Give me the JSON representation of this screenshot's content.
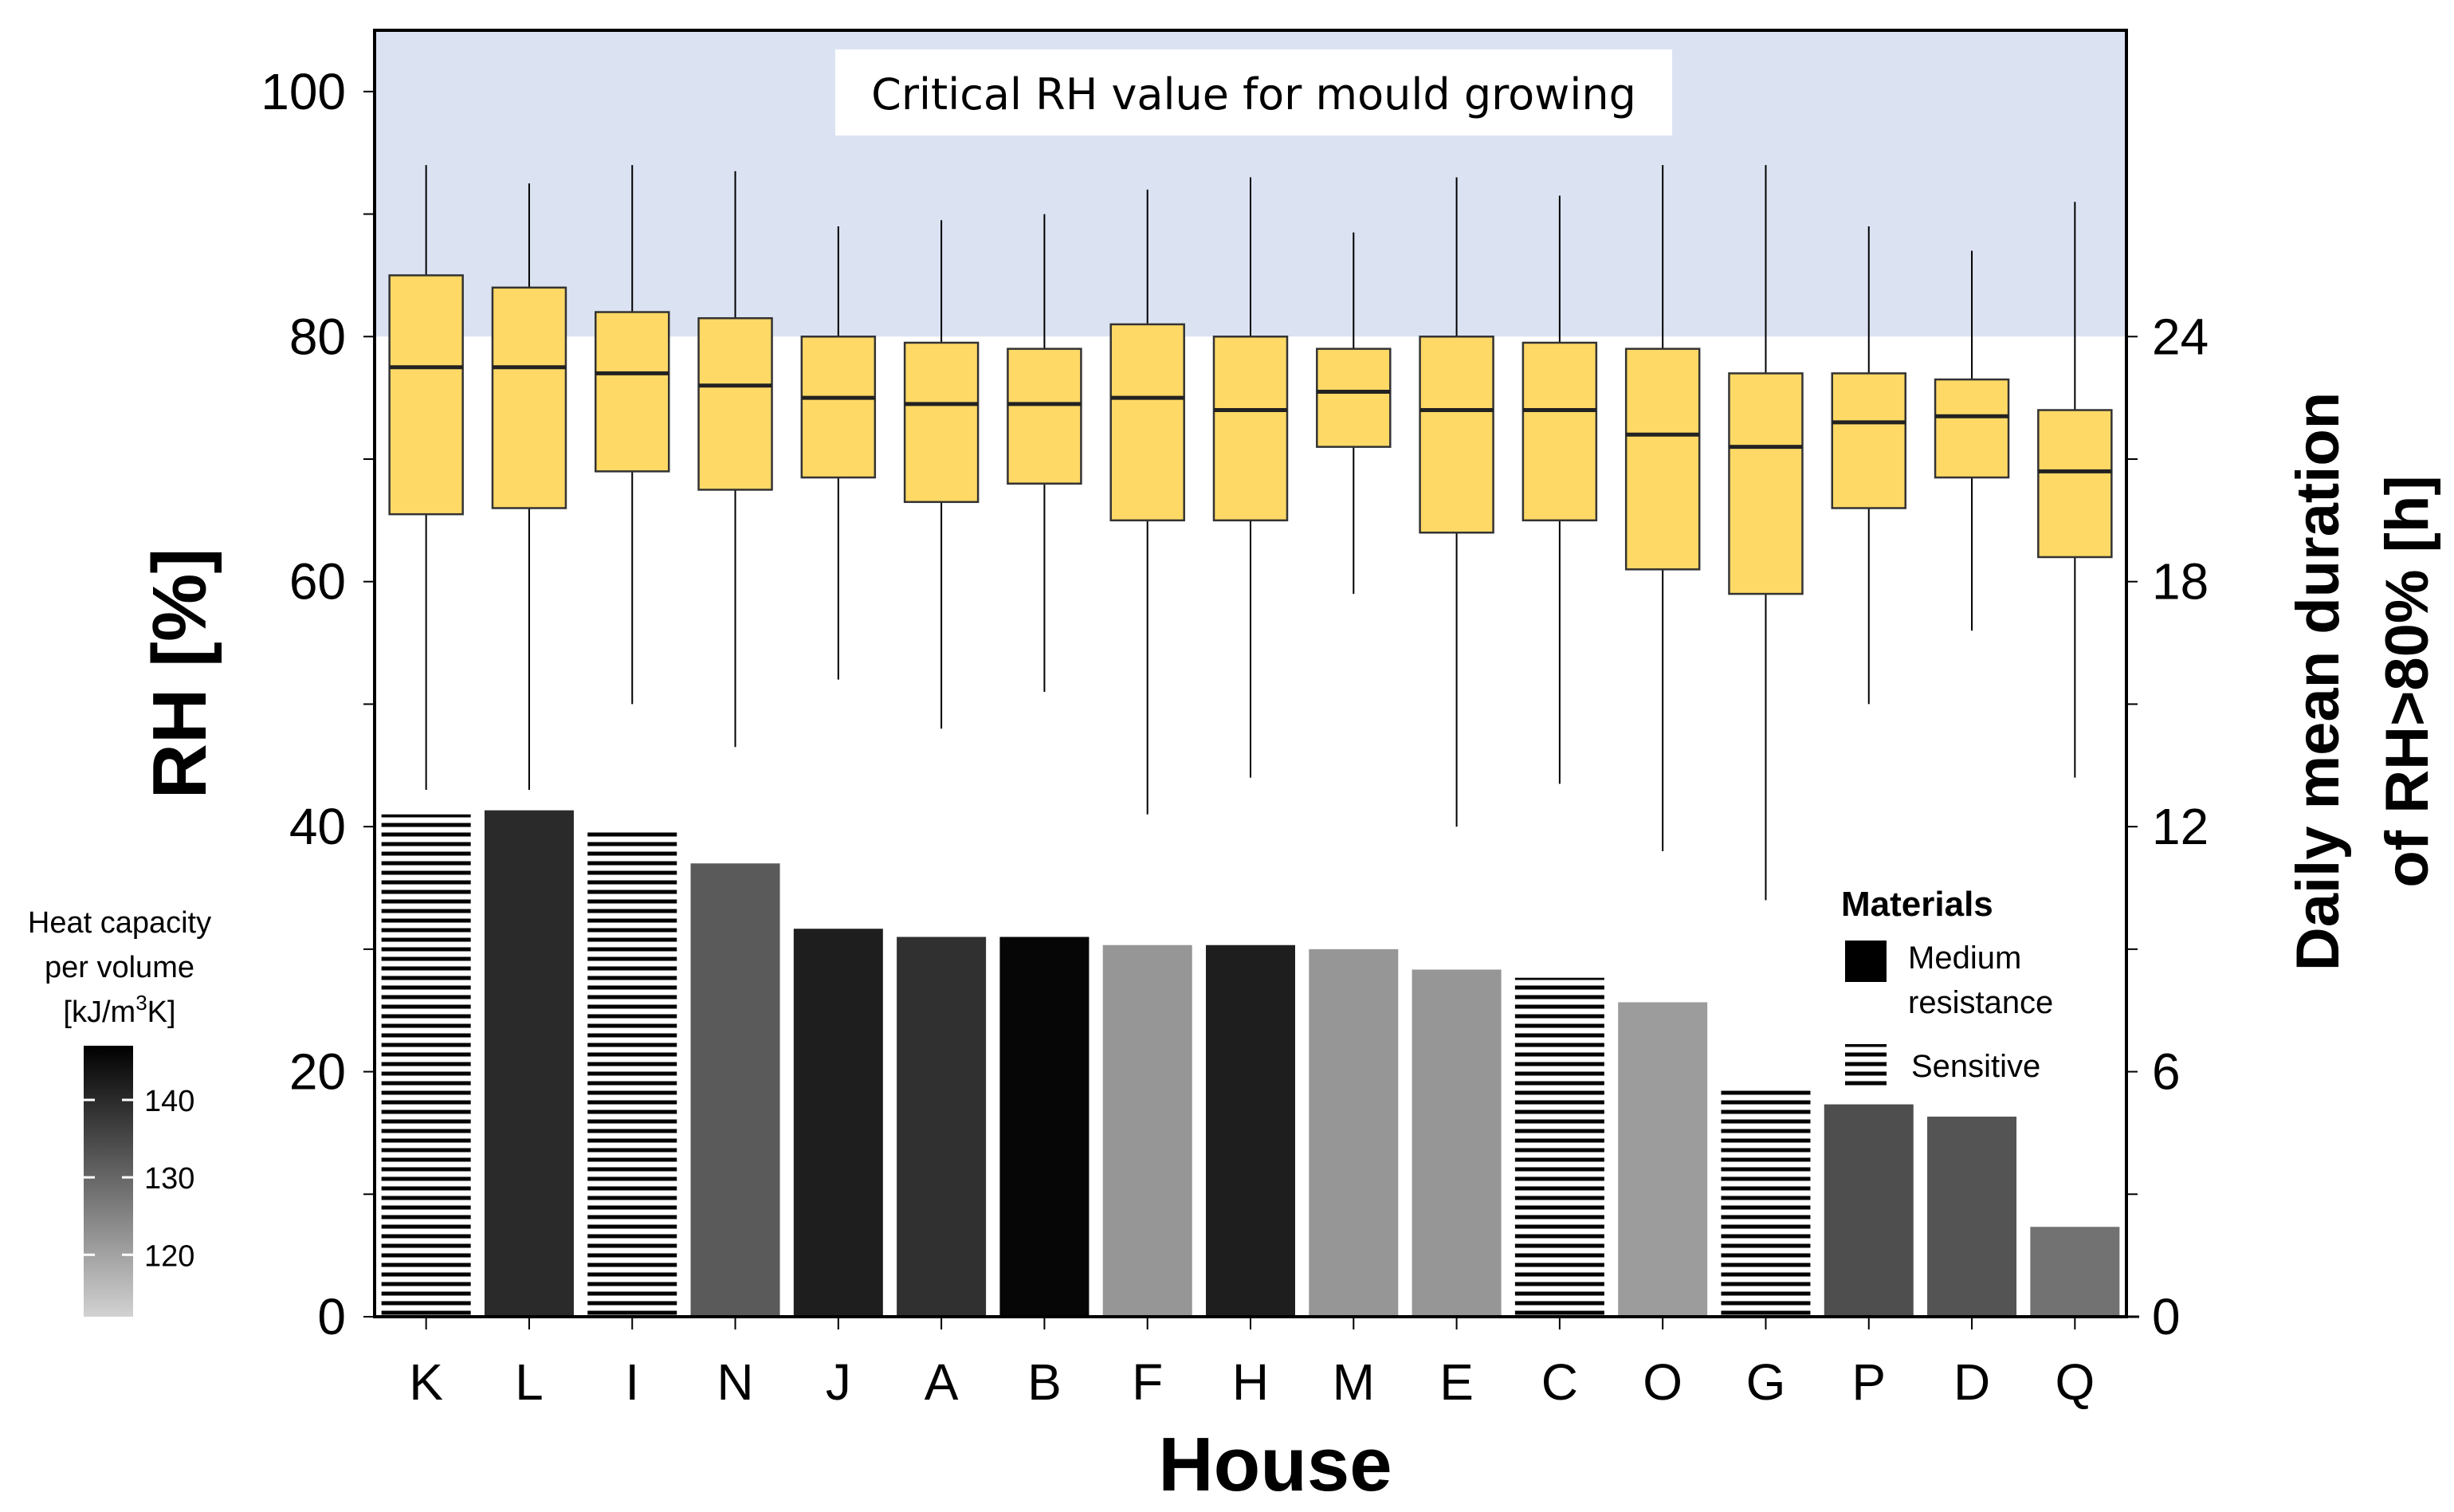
{
  "chart_data": {
    "type": "box+bar",
    "x_label": "House",
    "y_left_label": "RH [%]",
    "y_right_label": [
      "Daily mean duration",
      "of RH>80% [h]"
    ],
    "categories": [
      "K",
      "L",
      "I",
      "N",
      "J",
      "A",
      "B",
      "F",
      "H",
      "M",
      "E",
      "C",
      "O",
      "G",
      "P",
      "D",
      "Q"
    ],
    "y_left_range": [
      0,
      105
    ],
    "y_left_ticks": [
      0,
      20,
      40,
      60,
      80,
      100
    ],
    "y_right_range": [
      0,
      31.5
    ],
    "y_right_ticks": [
      0,
      6,
      12,
      18,
      24
    ],
    "critical_zone": {
      "from": 80,
      "to": 105,
      "label": "Critical RH value for mould growing",
      "color": "#dbe3f3"
    },
    "box_color": "#ffd966",
    "boxes": [
      {
        "house": "K",
        "whisker_low": 43,
        "q1": 65.5,
        "median": 77.5,
        "q3": 85,
        "whisker_high": 94
      },
      {
        "house": "L",
        "whisker_low": 43,
        "q1": 66,
        "median": 77.5,
        "q3": 84,
        "whisker_high": 92.5
      },
      {
        "house": "I",
        "whisker_low": 50,
        "q1": 69,
        "median": 77,
        "q3": 82,
        "whisker_high": 94
      },
      {
        "house": "N",
        "whisker_low": 46.5,
        "q1": 67.5,
        "median": 76,
        "q3": 81.5,
        "whisker_high": 93.5
      },
      {
        "house": "J",
        "whisker_low": 52,
        "q1": 68.5,
        "median": 75,
        "q3": 80,
        "whisker_high": 89
      },
      {
        "house": "A",
        "whisker_low": 48,
        "q1": 66.5,
        "median": 74.5,
        "q3": 79.5,
        "whisker_high": 89.5
      },
      {
        "house": "B",
        "whisker_low": 51,
        "q1": 68,
        "median": 74.5,
        "q3": 79,
        "whisker_high": 90
      },
      {
        "house": "F",
        "whisker_low": 41,
        "q1": 65,
        "median": 75,
        "q3": 81,
        "whisker_high": 92
      },
      {
        "house": "H",
        "whisker_low": 44,
        "q1": 65,
        "median": 74,
        "q3": 80,
        "whisker_high": 93
      },
      {
        "house": "M",
        "whisker_low": 59,
        "q1": 71,
        "median": 75.5,
        "q3": 79,
        "whisker_high": 88.5
      },
      {
        "house": "E",
        "whisker_low": 40,
        "q1": 64,
        "median": 74,
        "q3": 80,
        "whisker_high": 93
      },
      {
        "house": "C",
        "whisker_low": 43.5,
        "q1": 65,
        "median": 74,
        "q3": 79.5,
        "whisker_high": 91.5
      },
      {
        "house": "O",
        "whisker_low": 38,
        "q1": 61,
        "median": 72,
        "q3": 79,
        "whisker_high": 94
      },
      {
        "house": "G",
        "whisker_low": 34,
        "q1": 59,
        "median": 71,
        "q3": 77,
        "whisker_high": 94
      },
      {
        "house": "P",
        "whisker_low": 50,
        "q1": 66,
        "median": 73,
        "q3": 77,
        "whisker_high": 89
      },
      {
        "house": "D",
        "whisker_low": 56,
        "q1": 68.5,
        "median": 73.5,
        "q3": 76.5,
        "whisker_high": 87
      },
      {
        "house": "Q",
        "whisker_low": 44,
        "q1": 62,
        "median": 69,
        "q3": 74,
        "whisker_high": 91
      }
    ],
    "bars": [
      {
        "house": "K",
        "duration_h": 12.3,
        "heat_capacity": 142,
        "material": "Sensitive"
      },
      {
        "house": "L",
        "duration_h": 12.4,
        "heat_capacity": 140,
        "material": "Medium resistance"
      },
      {
        "house": "I",
        "duration_h": 11.9,
        "heat_capacity": 112,
        "material": "Sensitive"
      },
      {
        "house": "N",
        "duration_h": 11.1,
        "heat_capacity": 132,
        "material": "Medium resistance"
      },
      {
        "house": "J",
        "duration_h": 9.5,
        "heat_capacity": 142,
        "material": "Medium resistance"
      },
      {
        "house": "A",
        "duration_h": 9.3,
        "heat_capacity": 139,
        "material": "Medium resistance"
      },
      {
        "house": "B",
        "duration_h": 9.3,
        "heat_capacity": 146,
        "material": "Medium resistance"
      },
      {
        "house": "F",
        "duration_h": 9.1,
        "heat_capacity": 122,
        "material": "Medium resistance"
      },
      {
        "house": "H",
        "duration_h": 9.1,
        "heat_capacity": 142,
        "material": "Medium resistance"
      },
      {
        "house": "M",
        "duration_h": 9.0,
        "heat_capacity": 122,
        "material": "Medium resistance"
      },
      {
        "house": "E",
        "duration_h": 8.5,
        "heat_capacity": 122,
        "material": "Medium resistance"
      },
      {
        "house": "C",
        "duration_h": 8.3,
        "heat_capacity": 122,
        "material": "Sensitive"
      },
      {
        "house": "O",
        "duration_h": 7.7,
        "heat_capacity": 121,
        "material": "Medium resistance"
      },
      {
        "house": "G",
        "duration_h": 5.6,
        "heat_capacity": 124,
        "material": "Sensitive"
      },
      {
        "house": "P",
        "duration_h": 5.2,
        "heat_capacity": 134,
        "material": "Medium resistance"
      },
      {
        "house": "D",
        "duration_h": 4.9,
        "heat_capacity": 133,
        "material": "Medium resistance"
      },
      {
        "house": "Q",
        "duration_h": 2.2,
        "heat_capacity": 128,
        "material": "Medium resistance"
      }
    ],
    "legend": {
      "title": "Materials",
      "entries": [
        {
          "label_lines": [
            "Medium",
            "resistance"
          ],
          "style": "solid"
        },
        {
          "label_lines": [
            "Sensitive"
          ],
          "style": "hatched"
        }
      ],
      "placement": "inside-right"
    },
    "colorbar": {
      "title_lines": [
        "Heat capacity",
        "per volume"
      ],
      "unit_prefix": "[kJ/m",
      "unit_sup": "3",
      "unit_suffix": "K]",
      "range": [
        112,
        147
      ],
      "ticks": [
        120,
        130,
        140
      ],
      "color_low": "#d2d2d2",
      "color_high": "#000000",
      "placement": "left"
    }
  }
}
